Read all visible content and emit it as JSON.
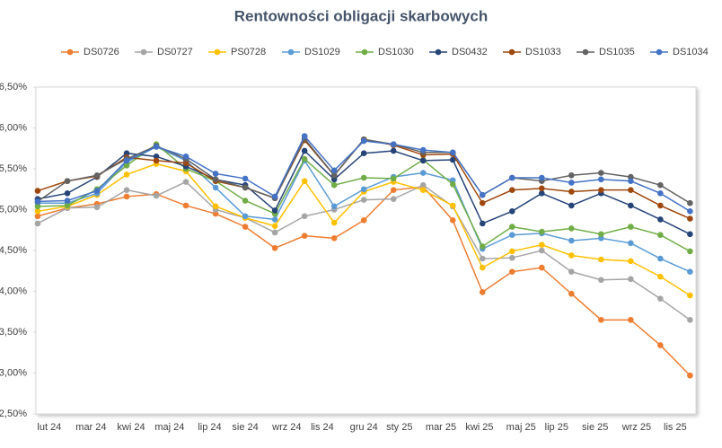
{
  "chart_data": {
    "type": "line",
    "title": "Rentowności obligacji skarbowych",
    "x": [
      0,
      1,
      2,
      3,
      4,
      5,
      6,
      7,
      8,
      9,
      10,
      11,
      12,
      13,
      14,
      15,
      16,
      17,
      18,
      19,
      20,
      21,
      22
    ],
    "xlim": [
      -0.06,
      22.2
    ],
    "xticks": [
      {
        "value": 0.39,
        "label": "lut 24"
      },
      {
        "value": 1.8,
        "label": "mar 24"
      },
      {
        "value": 3.15,
        "label": "kwi 24"
      },
      {
        "value": 4.45,
        "label": "maj 24"
      },
      {
        "value": 5.8,
        "label": "lip 24"
      },
      {
        "value": 7.0,
        "label": "sie 24"
      },
      {
        "value": 8.4,
        "label": "wrz 24"
      },
      {
        "value": 9.6,
        "label": "lis 24"
      },
      {
        "value": 11.0,
        "label": "gru 24"
      },
      {
        "value": 12.2,
        "label": "sty 25"
      },
      {
        "value": 13.6,
        "label": "mar 25"
      },
      {
        "value": 14.9,
        "label": "kwi 25"
      },
      {
        "value": 16.3,
        "label": "maj 25"
      },
      {
        "value": 17.5,
        "label": "lip 25"
      },
      {
        "value": 18.8,
        "label": "sie 25"
      },
      {
        "value": 20.2,
        "label": "wrz 25"
      },
      {
        "value": 21.5,
        "label": "lis 25"
      }
    ],
    "ylim": [
      2.5,
      6.5
    ],
    "yticks": [
      {
        "value": 2.5,
        "label": "2,50%"
      },
      {
        "value": 3.0,
        "label": "3,00%"
      },
      {
        "value": 3.5,
        "label": "3,50%"
      },
      {
        "value": 4.0,
        "label": "4,00%"
      },
      {
        "value": 4.5,
        "label": "4,50%"
      },
      {
        "value": 5.0,
        "label": "5,00%"
      },
      {
        "value": 5.5,
        "label": "5,50%"
      },
      {
        "value": 6.0,
        "label": "6,00%"
      },
      {
        "value": 6.5,
        "label": "6,50%"
      }
    ],
    "grid": false,
    "legend": "top",
    "series": [
      {
        "name": "DS0726",
        "color": "#ed7d31",
        "values": [
          4.92,
          5.02,
          5.07,
          5.16,
          5.19,
          5.05,
          4.95,
          4.79,
          4.53,
          4.68,
          4.65,
          4.87,
          5.24,
          5.28,
          4.87,
          3.99,
          4.24,
          4.29,
          3.97,
          3.65,
          3.65,
          3.34,
          2.97
        ]
      },
      {
        "name": "DS0727",
        "color": "#a5a5a5",
        "values": [
          4.83,
          5.02,
          5.03,
          5.24,
          5.17,
          5.34,
          5.0,
          4.9,
          4.72,
          4.92,
          5.0,
          5.12,
          5.13,
          5.3,
          5.04,
          4.4,
          4.41,
          4.5,
          4.24,
          4.14,
          4.15,
          3.91,
          3.65
        ]
      },
      {
        "name": "PS0728",
        "color": "#ffc000",
        "values": [
          4.98,
          5.04,
          5.18,
          5.43,
          5.56,
          5.47,
          5.04,
          4.9,
          4.8,
          5.35,
          4.84,
          5.22,
          5.34,
          5.24,
          5.05,
          4.29,
          4.49,
          4.57,
          4.44,
          4.39,
          4.37,
          4.18,
          3.95
        ]
      },
      {
        "name": "DS1029",
        "color": "#5b9bd5",
        "values": [
          5.08,
          5.08,
          5.2,
          5.58,
          5.77,
          5.6,
          5.27,
          4.92,
          4.88,
          5.6,
          5.04,
          5.25,
          5.4,
          5.45,
          5.36,
          4.52,
          4.69,
          4.71,
          4.62,
          4.65,
          4.59,
          4.4,
          4.24
        ]
      },
      {
        "name": "DS1030",
        "color": "#70ad47",
        "values": [
          5.04,
          5.05,
          5.25,
          5.54,
          5.8,
          5.5,
          5.35,
          5.11,
          4.95,
          5.62,
          5.3,
          5.39,
          5.38,
          5.61,
          5.31,
          4.55,
          4.79,
          4.73,
          4.77,
          4.7,
          4.79,
          4.69,
          4.49
        ]
      },
      {
        "name": "DS0432",
        "color": "#264478",
        "values": [
          5.13,
          5.2,
          5.4,
          5.69,
          5.65,
          5.53,
          5.37,
          5.3,
          4.99,
          5.72,
          5.37,
          5.69,
          5.72,
          5.6,
          5.61,
          4.83,
          4.98,
          5.2,
          5.05,
          5.2,
          5.05,
          4.88,
          4.7
        ]
      },
      {
        "name": "DS1033",
        "color": "#9e480e",
        "values": [
          5.23,
          5.35,
          5.41,
          5.64,
          5.6,
          5.57,
          5.35,
          5.27,
          5.14,
          5.85,
          5.42,
          5.86,
          5.79,
          5.67,
          5.68,
          5.08,
          5.24,
          5.26,
          5.22,
          5.24,
          5.24,
          5.05,
          4.89
        ]
      },
      {
        "name": "DS1035",
        "color": "#636363",
        "values": [
          5.1,
          5.35,
          5.42,
          5.62,
          5.78,
          5.62,
          5.37,
          5.27,
          5.14,
          5.87,
          5.42,
          5.86,
          5.8,
          5.7,
          5.7,
          5.18,
          5.39,
          5.35,
          5.42,
          5.45,
          5.4,
          5.3,
          5.08
        ]
      },
      {
        "name": "DS1034",
        "color": "#4472c4",
        "values": [
          5.1,
          5.11,
          5.23,
          5.6,
          5.77,
          5.65,
          5.44,
          5.38,
          5.16,
          5.9,
          5.48,
          5.84,
          5.8,
          5.73,
          5.7,
          5.18,
          5.39,
          5.39,
          5.33,
          5.37,
          5.35,
          5.2,
          4.98
        ]
      }
    ]
  }
}
